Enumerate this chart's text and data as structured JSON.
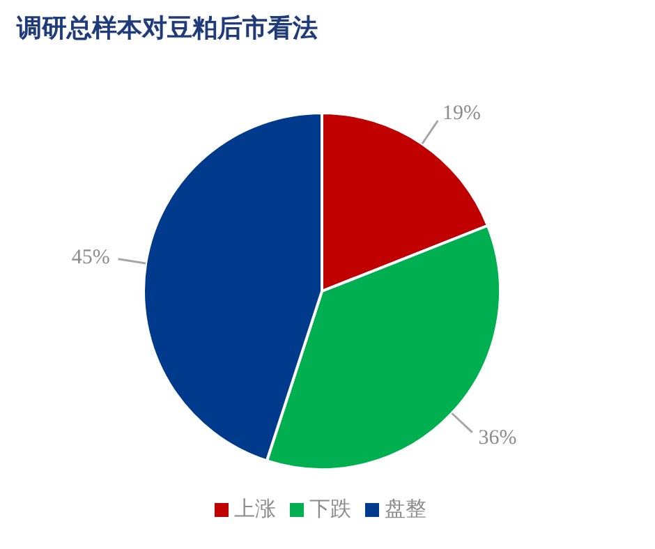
{
  "chart_data": {
    "type": "pie",
    "title": "调研总样本对豆粕后市看法",
    "categories": [
      "上涨",
      "下跌",
      "盘整"
    ],
    "values": [
      19,
      36,
      45
    ],
    "colors": [
      "#c00000",
      "#00b050",
      "#003a8c"
    ],
    "value_labels": [
      "19%",
      "36%",
      "45%"
    ],
    "legend": "bottom"
  }
}
